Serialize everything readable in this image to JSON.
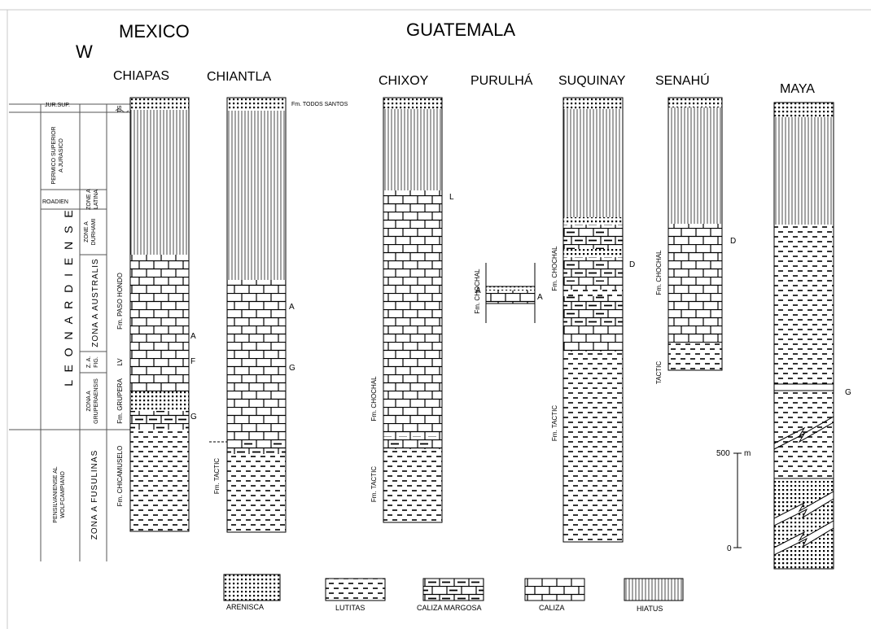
{
  "regions": {
    "mexico": "MEXICO",
    "guatemala": "GUATEMALA",
    "west": "W"
  },
  "columns": {
    "chiapas": "CHIAPAS",
    "chiantla": "CHIANTLA",
    "chixoy": "CHIXOY",
    "purulha": "PURULHÁ",
    "suquinay": "SUQUINAY",
    "senahu": "SENAHÚ",
    "maya": "MAYA"
  },
  "chronostrat": {
    "jur_sup": "JUR.SUP.",
    "permico_1": "PERMICO SUPERIOR",
    "permico_2": "A JURASICO",
    "roadien": "ROADIEN",
    "latina_1": "ZONE A",
    "latina_2": "LATINA",
    "durhami_1": "ZONE A",
    "durhami_2": "DURHAMI",
    "leonardiense": "L E O N A R D I E N S E",
    "australis": "ZONA A AUSTRALIS",
    "za_fig_1": "Z. A.",
    "za_fig_2": "FIG.",
    "grupera_1": "ZONA A",
    "grupera_2": "GRUPERAENSIS",
    "pensil_1": "PENSILVANIENSE AL",
    "pensil_2": "WOLFCAMPIANO",
    "fusulinas": "ZONA A FUSULINAS"
  },
  "formations": {
    "ts": "TS",
    "paso_hondo": "Fm. PASO HONDO",
    "lv": "LV",
    "grupera": "Fm. GRUPERA",
    "chicamuselo": "Fm. CHICAMUSELO",
    "todos_santos": "Fm. TODOS SANTOS",
    "tactic": "Fm. TACTIC",
    "chochal": "Fm. CHOCHAL",
    "tactic_plain": "TACTIC"
  },
  "markers": {
    "a": "A",
    "f": "F",
    "g": "G",
    "l": "L",
    "d": "D"
  },
  "scale": {
    "value_500": "500",
    "unit": "m",
    "value_0": "0"
  },
  "legend": {
    "arenisca": "ARENISCA",
    "lutitas": "LUTITAS",
    "caliza_margosa": "CALIZA MARGOSA",
    "caliza": "CALIZA",
    "hiatus": "HIATUS"
  }
}
